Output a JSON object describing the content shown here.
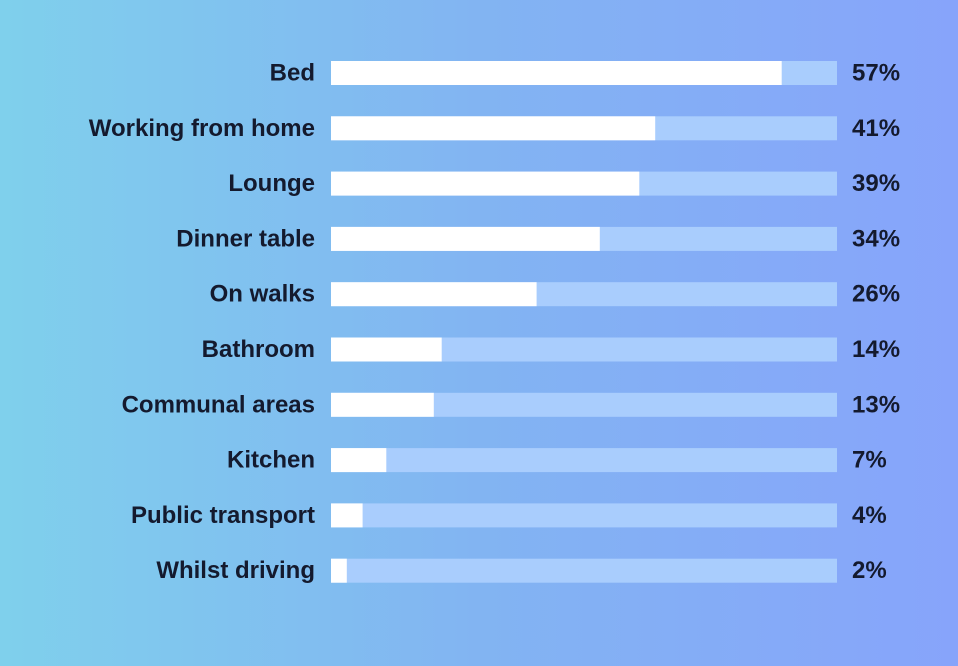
{
  "colors": {
    "bar_fill": "#ffffff",
    "bar_track": "#a9cdfd",
    "text": "#141a2e",
    "background_start": "#7fd0ec",
    "background_end": "#87a4fb"
  },
  "chart_data": {
    "type": "bar",
    "orientation": "horizontal",
    "categories": [
      "Bed",
      "Working from home",
      "Lounge",
      "Dinner table",
      "On walks",
      "Bathroom",
      "Communal areas",
      "Kitchen",
      "Public transport",
      "Whilst driving"
    ],
    "values": [
      57,
      41,
      39,
      34,
      26,
      14,
      13,
      7,
      4,
      2
    ],
    "value_labels": [
      "57%",
      "41%",
      "39%",
      "34%",
      "26%",
      "14%",
      "13%",
      "7%",
      "4%",
      "2%"
    ],
    "unit": "%",
    "xlim": [
      0,
      64
    ],
    "grid": false,
    "legend": "none"
  }
}
